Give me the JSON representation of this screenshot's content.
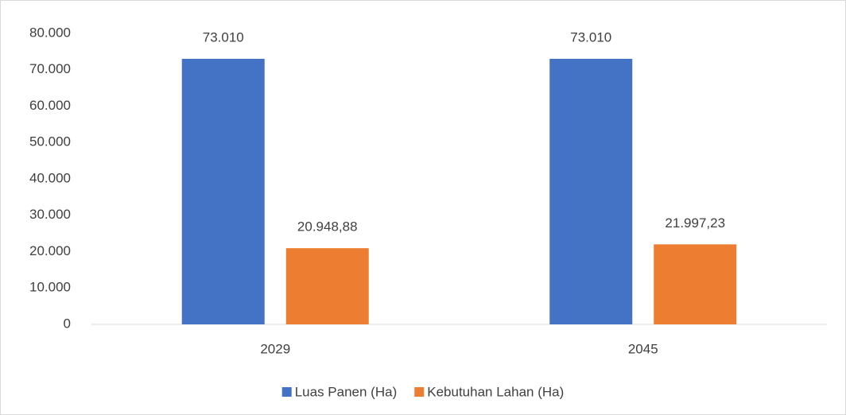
{
  "chart_data": {
    "type": "bar",
    "categories": [
      "2029",
      "2045"
    ],
    "series": [
      {
        "name": "Luas Panen (Ha)",
        "color": "#4472c4",
        "values": [
          73010,
          73010
        ],
        "value_labels": [
          "73.010",
          "73.010"
        ]
      },
      {
        "name": "Kebutuhan Lahan (Ha)",
        "color": "#ed7d31",
        "values": [
          20948.88,
          21997.23
        ],
        "value_labels": [
          "20.948,88",
          "21.997,23"
        ]
      }
    ],
    "ylim": [
      0,
      80000
    ],
    "yticks": [
      0,
      {
        "value": 10000,
        "label": "10.000"
      },
      {
        "value": 20000,
        "label": "20.000"
      },
      {
        "value": 30000,
        "label": "30.000"
      },
      {
        "value": 40000,
        "label": "40.000"
      },
      {
        "value": 50000,
        "label": "50.000"
      },
      {
        "value": 60000,
        "label": "60.000"
      },
      {
        "value": 70000,
        "label": "70.000"
      },
      {
        "value": 80000,
        "label": "80.000"
      }
    ],
    "grid": false,
    "legend": "bottom"
  }
}
